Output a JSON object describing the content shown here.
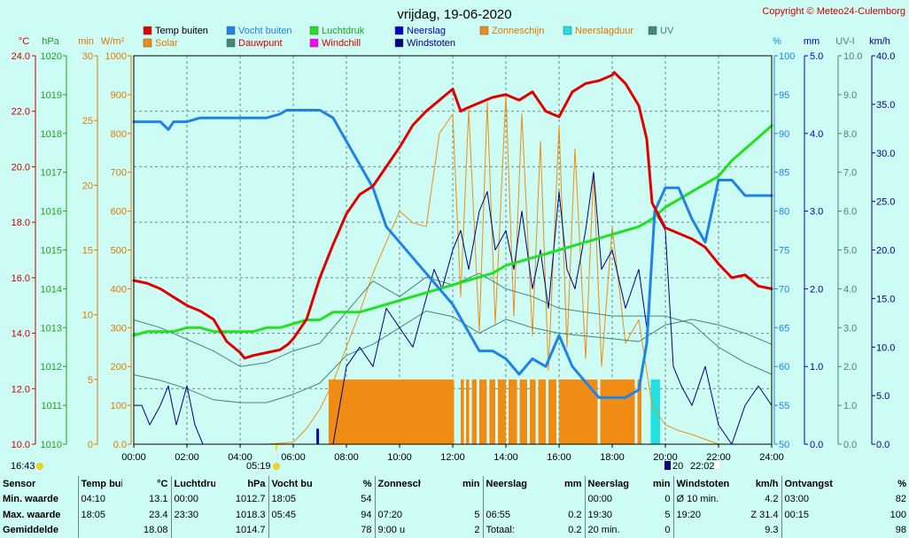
{
  "title": "vrijdag, 19-06-2020",
  "copyright": "Copyright © Meteo24-Culemborg",
  "colors": {
    "temp": "#e00000",
    "humidity": "#1e82e8",
    "pressure": "#22e022",
    "windgust": "#000080",
    "solar": "#f08c14",
    "dewpoint": "#408878",
    "sunshine": "#f08c14",
    "raindur": "#22e0e0",
    "rain": "#0000c8"
  },
  "legend": [
    {
      "label": "Temp buiten",
      "color": "#e00000",
      "text_color": "#000000"
    },
    {
      "label": "Solar",
      "color": "#f08c14",
      "text_color": "#e07800"
    },
    {
      "label": "Vocht buiten",
      "color": "#1e82e8",
      "text_color": "#1e82e8"
    },
    {
      "label": "Dauwpunt",
      "color": "#408878",
      "text_color": "#d00000"
    },
    {
      "label": "Luchtdruk",
      "color": "#22e022",
      "text_color": "#22a022"
    },
    {
      "label": "Windchill",
      "color": "#ff00ff",
      "text_color": "#d00000"
    },
    {
      "label": "Neerslag",
      "color": "#0000c8",
      "text_color": "#0000c8"
    },
    {
      "label": "Windstoten",
      "color": "#000080",
      "text_color": "#000080"
    },
    {
      "label": "Zonneschijn",
      "color": "#f08c14",
      "text_color": "#e07800"
    },
    {
      "label": "Neerslagduur",
      "color": "#22e0e0",
      "text_color": "#e07800"
    },
    {
      "label": "UV",
      "color": "#408878",
      "text_color": "#408878"
    }
  ],
  "axes": {
    "temp": {
      "unit": "°C",
      "ticks": [
        "24.0",
        "22.0",
        "20.0",
        "18.0",
        "16.0",
        "14.0",
        "12.0",
        "10.0"
      ],
      "min": 10,
      "max": 24
    },
    "pressure": {
      "unit": "hPa",
      "ticks": [
        "1020",
        "1019",
        "1018",
        "1017",
        "1016",
        "1015",
        "1014",
        "1013",
        "1012",
        "1011",
        "1010"
      ],
      "min": 1010,
      "max": 1020
    },
    "sunmin": {
      "unit": "min",
      "ticks": [
        "30",
        "25",
        "20",
        "15",
        "10",
        "5",
        "0"
      ],
      "min": 0,
      "max": 30
    },
    "solar": {
      "unit": "W/m²",
      "ticks": [
        "1000",
        "900",
        "800",
        "700",
        "600",
        "500",
        "400",
        "300",
        "200",
        "100",
        "0.0"
      ],
      "min": 0,
      "max": 1000
    },
    "humidity": {
      "unit": "%",
      "ticks": [
        "100",
        "95",
        "90",
        "85",
        "80",
        "75",
        "70",
        "65",
        "60",
        "55",
        "50"
      ],
      "min": 50,
      "max": 100
    },
    "rain": {
      "unit": "mm",
      "ticks": [
        "5.0",
        "4.0",
        "3.0",
        "2.0",
        "1.0",
        "0.0"
      ],
      "min": 0,
      "max": 5
    },
    "uv": {
      "unit": "UV-I",
      "ticks": [
        "10.0",
        "9.0",
        "8.0",
        "7.0",
        "6.0",
        "5.0",
        "4.0",
        "3.0",
        "2.0",
        "1.0",
        "0.0"
      ],
      "min": 0,
      "max": 10
    },
    "wind": {
      "unit": "km/h",
      "ticks": [
        "40.0",
        "35.0",
        "30.0",
        "25.0",
        "20.0",
        "15.0",
        "10.0",
        "5.0",
        "0.0"
      ],
      "min": 0,
      "max": 40
    }
  },
  "xticks": [
    "00:00",
    "02:00",
    "04:00",
    "06:00",
    "08:00",
    "10:00",
    "12:00",
    "14:00",
    "16:00",
    "18:00",
    "20:00",
    "22:00",
    "24:00"
  ],
  "sun_markers": {
    "dawn": "16:43",
    "sunrise": "05:19",
    "sunset": "22:02",
    "sunset_short": "20"
  },
  "chart_data": {
    "type": "line",
    "title": "vrijdag, 19-06-2020",
    "x_unit": "hour",
    "xlim": [
      0,
      24
    ],
    "grid": true,
    "legend_position": "top",
    "series": [
      {
        "name": "Temp buiten",
        "unit": "°C",
        "axis": "temp",
        "x": [
          0,
          0.5,
          1,
          1.5,
          2,
          2.5,
          3,
          3.5,
          4,
          4.17,
          4.5,
          5,
          5.5,
          5.8,
          6,
          6.5,
          7,
          7.5,
          8,
          8.5,
          9,
          9.5,
          10,
          10.5,
          11,
          11.5,
          12,
          12.3,
          12.5,
          13,
          13.5,
          14,
          14.5,
          15,
          15.5,
          16,
          16.5,
          17,
          17.5,
          18,
          18.08,
          18.5,
          19,
          19.3,
          19.5,
          20,
          20.5,
          21,
          21.5,
          22,
          22.5,
          23,
          23.5,
          24
        ],
        "values": [
          15.9,
          15.8,
          15.6,
          15.3,
          15.0,
          14.8,
          14.5,
          13.7,
          13.3,
          13.1,
          13.2,
          13.3,
          13.4,
          13.6,
          13.8,
          14.5,
          16.0,
          17.2,
          18.3,
          19.0,
          19.3,
          20.0,
          20.7,
          21.5,
          22.0,
          22.4,
          22.8,
          22.0,
          22.1,
          22.3,
          22.5,
          22.6,
          22.4,
          22.7,
          22.0,
          21.8,
          22.7,
          23.0,
          23.1,
          23.3,
          23.4,
          23.0,
          22.2,
          21.0,
          18.7,
          17.8,
          17.6,
          17.4,
          17.1,
          16.5,
          16.0,
          16.1,
          15.7,
          15.6
        ]
      },
      {
        "name": "Vocht buiten",
        "unit": "%",
        "axis": "humidity",
        "x": [
          0,
          0.5,
          1,
          1.3,
          1.5,
          2,
          2.5,
          3,
          3.5,
          4,
          4.5,
          5,
          5.5,
          5.75,
          6,
          6.5,
          7,
          7.5,
          8,
          8.5,
          9,
          9.5,
          10,
          10.5,
          11,
          11.5,
          12,
          12.5,
          13,
          13.5,
          14,
          14.5,
          15,
          15.5,
          16,
          16.5,
          17,
          17.5,
          18,
          18.5,
          19,
          19.3,
          19.6,
          20,
          20.5,
          21,
          21.5,
          22,
          22.5,
          23,
          23.5,
          24
        ],
        "values": [
          91.5,
          91.5,
          91.5,
          90.5,
          91.5,
          91.5,
          92,
          92,
          92,
          92,
          92,
          92,
          92.5,
          93,
          93,
          93,
          93,
          92,
          89,
          86,
          83,
          78,
          76,
          74,
          72,
          70,
          68,
          65,
          62,
          62,
          61,
          59,
          61,
          60,
          64,
          60,
          58,
          56,
          56,
          56,
          57,
          63,
          80,
          83,
          83,
          79,
          76,
          84,
          84,
          82,
          82,
          82
        ]
      },
      {
        "name": "Luchtdruk",
        "unit": "hPa",
        "axis": "pressure",
        "x": [
          0,
          0.5,
          1,
          1.5,
          2,
          2.5,
          3,
          3.5,
          4,
          4.5,
          5,
          5.5,
          6,
          6.5,
          7,
          7.5,
          8,
          8.5,
          9,
          9.5,
          10,
          10.5,
          11,
          11.5,
          12,
          12.5,
          13,
          13.5,
          14,
          14.5,
          15,
          15.5,
          16,
          16.5,
          17,
          17.5,
          18,
          18.5,
          19,
          19.5,
          20,
          20.5,
          21,
          21.5,
          22,
          22.5,
          23,
          23.5,
          24
        ],
        "values": [
          1012.8,
          1012.9,
          1012.9,
          1012.9,
          1013.0,
          1013.0,
          1012.9,
          1012.9,
          1012.9,
          1012.9,
          1013.0,
          1013.0,
          1013.1,
          1013.2,
          1013.2,
          1013.4,
          1013.4,
          1013.4,
          1013.5,
          1013.6,
          1013.7,
          1013.8,
          1013.9,
          1014.0,
          1014.1,
          1014.2,
          1014.3,
          1014.4,
          1014.6,
          1014.7,
          1014.8,
          1014.9,
          1015.0,
          1015.1,
          1015.2,
          1015.3,
          1015.4,
          1015.5,
          1015.6,
          1015.8,
          1016.1,
          1016.3,
          1016.5,
          1016.7,
          1016.9,
          1017.3,
          1017.6,
          1017.9,
          1018.2
        ]
      },
      {
        "name": "Dauwpunt",
        "unit": "°C",
        "axis": "temp",
        "x": [
          0,
          1,
          2,
          3,
          4,
          5,
          6,
          7,
          8,
          9,
          10,
          11,
          12,
          13,
          14,
          15,
          16,
          17,
          18,
          19,
          20,
          21,
          22,
          23,
          24
        ],
        "values": [
          12.5,
          12.3,
          12.0,
          11.6,
          11.5,
          11.5,
          11.8,
          12.2,
          13.2,
          13.6,
          14.2,
          14.8,
          14.6,
          14.0,
          14.5,
          14.2,
          14.0,
          13.9,
          13.8,
          13.7,
          14.3,
          14.5,
          14.3,
          14.0,
          13.6
        ]
      },
      {
        "name": "UV",
        "unit": "UV-I",
        "axis": "uv",
        "x": [
          0,
          1,
          2,
          3,
          4,
          5,
          6,
          7,
          8,
          9,
          10,
          11,
          12,
          13,
          14,
          15,
          16,
          17,
          18,
          19,
          20,
          21,
          22,
          23,
          24
        ],
        "values": [
          3.2,
          3.0,
          2.7,
          2.4,
          2.0,
          2.1,
          2.4,
          2.6,
          3.4,
          4.2,
          3.8,
          4.3,
          4.1,
          4.4,
          4.0,
          3.8,
          3.5,
          3.4,
          3.3,
          3.3,
          3.3,
          3.1,
          2.5,
          2.1,
          1.8
        ]
      },
      {
        "name": "Solar",
        "unit": "W/m²",
        "axis": "solar",
        "x": [
          0,
          5,
          6,
          6.5,
          7,
          7.5,
          8,
          8.5,
          9,
          9.5,
          10,
          10.5,
          11,
          11.5,
          12,
          12.3,
          12.6,
          13,
          13.3,
          13.6,
          14,
          14.3,
          14.6,
          15,
          15.3,
          15.6,
          16,
          16.3,
          16.6,
          17,
          17.3,
          17.6,
          18,
          18.5,
          19,
          19.5,
          20,
          20.5,
          21,
          22,
          24
        ],
        "values": [
          0,
          0,
          5,
          40,
          90,
          160,
          250,
          340,
          440,
          520,
          600,
          570,
          560,
          800,
          850,
          380,
          860,
          290,
          880,
          310,
          900,
          330,
          850,
          280,
          780,
          190,
          820,
          250,
          760,
          220,
          700,
          200,
          560,
          260,
          320,
          100,
          50,
          35,
          25,
          0,
          0
        ]
      },
      {
        "name": "Windstoten",
        "unit": "km/h",
        "axis": "wind",
        "x": [
          0,
          0.3,
          0.6,
          1,
          1.3,
          1.6,
          2,
          2.3,
          2.6,
          3,
          3.5,
          4,
          4.5,
          5,
          5.5,
          6,
          6.5,
          7,
          7.5,
          8,
          8.5,
          9,
          9.5,
          10,
          10.5,
          11,
          11.3,
          11.6,
          12,
          12.3,
          12.6,
          13,
          13.3,
          13.6,
          14,
          14.3,
          14.6,
          15,
          15.3,
          15.6,
          16,
          16.3,
          16.6,
          17,
          17.3,
          17.6,
          18,
          18.5,
          19,
          19.3,
          19.6,
          20,
          20.3,
          20.6,
          21,
          21.5,
          22,
          22.5,
          23,
          23.5,
          24
        ],
        "values": [
          4,
          4,
          2,
          4,
          6,
          2,
          6,
          2,
          0,
          0,
          0,
          0,
          0,
          0,
          0,
          0,
          0,
          0,
          0,
          8,
          10,
          8,
          14,
          12,
          10,
          15,
          18,
          16,
          20,
          22,
          18,
          24,
          26,
          20,
          22,
          18,
          24,
          16,
          20,
          14,
          26,
          18,
          16,
          22,
          28,
          18,
          20,
          14,
          18,
          12,
          24,
          22,
          8,
          6,
          4,
          8,
          2,
          0,
          4,
          6,
          4
        ]
      }
    ],
    "bars": [
      {
        "name": "Zonneschijn",
        "unit": "min",
        "axis": "sunmin",
        "start": 7.33,
        "end": 19.1,
        "value": 5,
        "gaps": [
          [
            12.05,
            12.3
          ],
          [
            12.42,
            12.5
          ],
          [
            12.62,
            12.72
          ],
          [
            12.9,
            13.0
          ],
          [
            13.28,
            13.38
          ],
          [
            13.6,
            13.7
          ],
          [
            14.0,
            14.1
          ],
          [
            14.42,
            14.52
          ],
          [
            14.8,
            14.9
          ],
          [
            15.12,
            15.22
          ],
          [
            15.5,
            15.6
          ],
          [
            15.9,
            16.0
          ],
          [
            17.45,
            17.55
          ],
          [
            18.85,
            18.95
          ]
        ]
      },
      {
        "name": "Neerslagduur",
        "unit": "min",
        "axis": "sunmin",
        "start": 19.45,
        "end": 19.8,
        "value": 5
      },
      {
        "name": "Neerslag",
        "unit": "mm",
        "axis": "rain",
        "x": [
          6.92
        ],
        "values": [
          0.2
        ]
      }
    ]
  },
  "stats": {
    "headers": [
      {
        "label": "Sensor",
        "unit": ""
      },
      {
        "label": "Temp buiten",
        "unit": "°C"
      },
      {
        "label": "Luchtdruk",
        "unit": "hPa"
      },
      {
        "label": "Vocht buiten",
        "unit": "%"
      },
      {
        "label": "Zonneschijn",
        "unit": "min"
      },
      {
        "label": "Neerslag",
        "unit": "mm"
      },
      {
        "label": "Neerslagduur",
        "unit": "min"
      },
      {
        "label": "Windstoten",
        "unit": "km/h"
      },
      {
        "label": "Ontvangst",
        "unit": "%"
      }
    ],
    "rows": [
      {
        "label": "Min. waarde",
        "cells": [
          [
            "04:10",
            "13.1"
          ],
          [
            "00:00",
            "1012.7"
          ],
          [
            "18:05",
            "54"
          ],
          [
            "",
            ""
          ],
          [
            "",
            ""
          ],
          [
            "00:00",
            "0"
          ],
          [
            "Ø 10 min.",
            "4.2"
          ],
          [
            "03:00",
            "82"
          ]
        ]
      },
      {
        "label": "Max. waarde",
        "cells": [
          [
            "18:05",
            "23.4"
          ],
          [
            "23:30",
            "1018.3"
          ],
          [
            "05:45",
            "94"
          ],
          [
            "07:20",
            "5"
          ],
          [
            "06:55",
            "0.2"
          ],
          [
            "19:30",
            "5"
          ],
          [
            "19:20",
            "Z 31.4"
          ],
          [
            "00:15",
            "100"
          ]
        ]
      },
      {
        "label": "Gemiddelde",
        "cells": [
          [
            "",
            "18.08"
          ],
          [
            "",
            "1014.7"
          ],
          [
            "",
            "78"
          ],
          [
            "9:00 u",
            "2"
          ],
          [
            "Totaal:",
            "0.2"
          ],
          [
            "20 min.",
            "0"
          ],
          [
            "",
            "9.3"
          ],
          [
            "",
            "98"
          ]
        ]
      }
    ]
  }
}
